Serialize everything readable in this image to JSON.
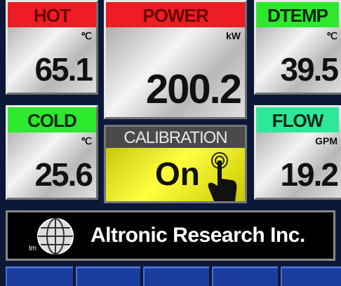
{
  "panels": [
    {
      "label": "HOT",
      "unit": "℃",
      "value": 65.1
    },
    {
      "label": "POWER",
      "unit": "kW",
      "value": 200.2
    },
    {
      "label": "DTEMP",
      "unit": "℃",
      "value": 39.5
    },
    {
      "label": "COLD",
      "unit": "℃",
      "value": 25.6
    },
    {
      "label": "FLOW",
      "unit": "GPM",
      "value": 19.2
    }
  ],
  "calibration": {
    "label": "CALIBRATION",
    "state": "On"
  },
  "banner": {
    "company": "Altronic Research Inc.",
    "trademark": "tm"
  }
}
